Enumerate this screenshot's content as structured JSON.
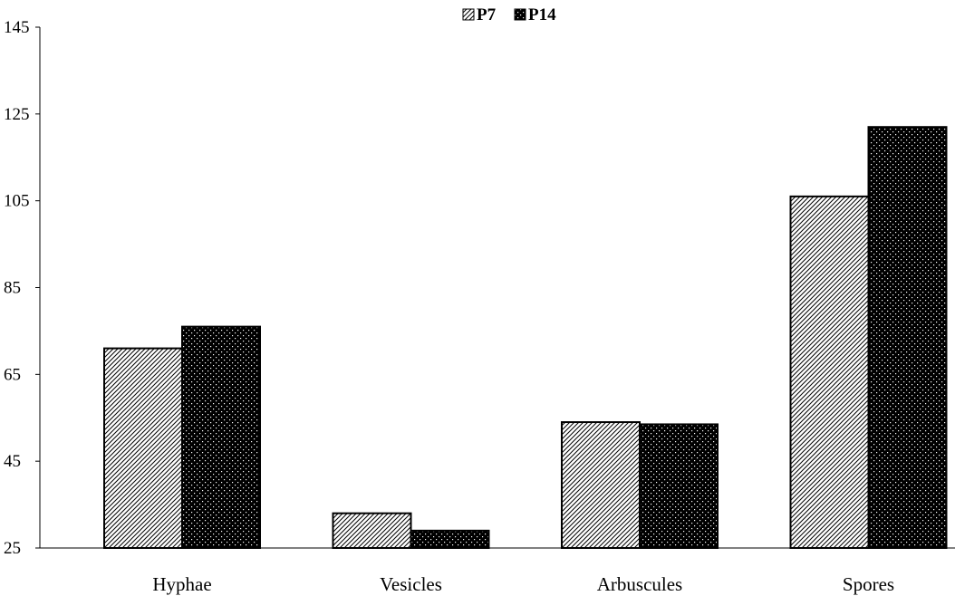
{
  "chart_data": {
    "type": "bar",
    "categories": [
      "Hyphae",
      "Vesicles",
      "Arbuscules",
      "Spores"
    ],
    "series": [
      {
        "name": "P7",
        "values": [
          71,
          33,
          54,
          106
        ],
        "pattern": "diagonal-hatch"
      },
      {
        "name": "P14",
        "values": [
          76,
          29,
          53.5,
          122
        ],
        "pattern": "dotted-black"
      }
    ],
    "title": "",
    "xlabel": "",
    "ylabel": "",
    "ylim": [
      25,
      145
    ],
    "yticks": [
      25,
      45,
      65,
      85,
      105,
      125,
      145
    ],
    "grid": false,
    "legend_position": "top-center"
  }
}
